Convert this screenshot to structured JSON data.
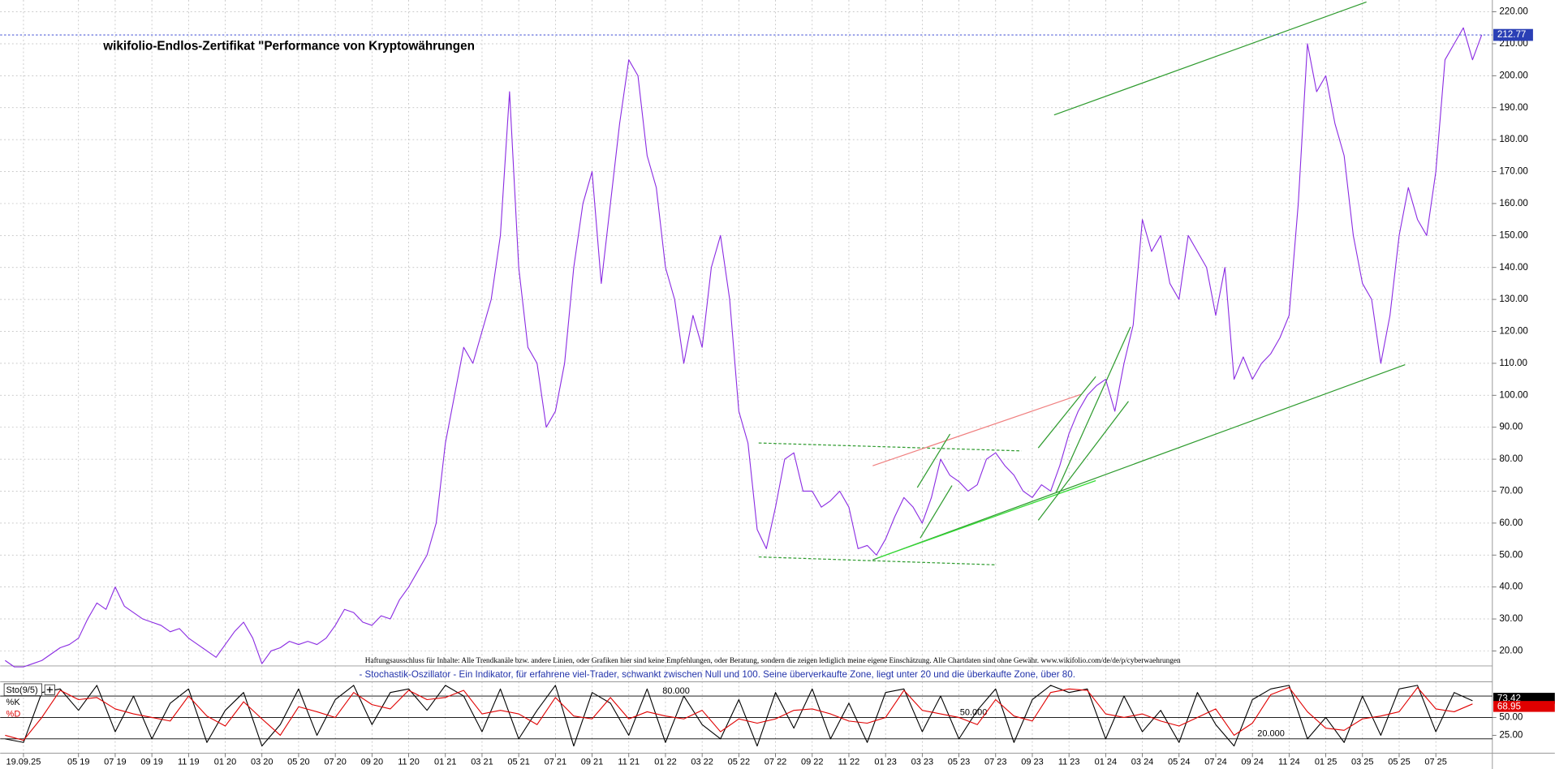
{
  "chart_data": [
    {
      "type": "line",
      "title": "wikifolio-Endlos-Zertifikat \"Performance von Kryptowährungen",
      "disclaimer": "Haftungsausschluss für Inhalte: Alle Trendkanäle bzw. andere Linien, oder Grafiken hier sind keine Empfehlungen, oder Beratung, sondern die zeigen lediglich meine eigene Einschätzung. Alle Chartdaten sind ohne Gewähr.  www.wikifolio.com/de/de/p/cyberwaehrungen",
      "categories": [
        null,
        null,
        "19.09.25",
        null,
        null,
        null,
        null,
        null,
        "05 19",
        null,
        null,
        null,
        "07 19",
        null,
        null,
        null,
        "09 19",
        null,
        null,
        null,
        "11 19",
        null,
        null,
        null,
        "01 20",
        null,
        null,
        null,
        "03 20",
        null,
        null,
        null,
        "05 20",
        null,
        null,
        null,
        "07 20",
        null,
        null,
        null,
        "09 20",
        null,
        null,
        null,
        "11 20",
        null,
        null,
        null,
        "01 21",
        null,
        null,
        null,
        "03 21",
        null,
        null,
        null,
        "05 21",
        null,
        null,
        null,
        "07 21",
        null,
        null,
        null,
        "09 21",
        null,
        null,
        null,
        "11 21",
        null,
        null,
        null,
        "01 22",
        null,
        null,
        null,
        "03 22",
        null,
        null,
        null,
        "05 22",
        null,
        null,
        null,
        "07 22",
        null,
        null,
        null,
        "09 22",
        null,
        null,
        null,
        "11 22",
        null,
        null,
        null,
        "01 23",
        null,
        null,
        null,
        "03 23",
        null,
        null,
        null,
        "05 23",
        null,
        null,
        null,
        "07 23",
        null,
        null,
        null,
        "09 23",
        null,
        null,
        null,
        "11 23",
        null,
        null,
        null,
        "01 24",
        null,
        null,
        null,
        "03 24",
        null,
        null,
        null,
        "05 24",
        null,
        null,
        null,
        "07 24",
        null,
        null,
        null,
        "09 24",
        null,
        null,
        null,
        "11 24",
        null,
        null,
        null,
        "01 25",
        null,
        null,
        null,
        "03 25",
        null,
        null,
        null,
        "05 25",
        null,
        null,
        null,
        "07 25",
        null,
        null,
        null,
        null,
        null
      ],
      "values": [
        17,
        15,
        15,
        16,
        17,
        19,
        21,
        22,
        24,
        30,
        35,
        33,
        40,
        34,
        32,
        30,
        29,
        28,
        26,
        27,
        24,
        22,
        20,
        18,
        22,
        26,
        29,
        24,
        16,
        20,
        21,
        23,
        22,
        23,
        22,
        24,
        28,
        33,
        32,
        29,
        28,
        31,
        30,
        36,
        40,
        45,
        50,
        60,
        85,
        100,
        115,
        110,
        120,
        130,
        150,
        195,
        140,
        115,
        110,
        90,
        95,
        110,
        140,
        160,
        170,
        135,
        160,
        185,
        205,
        200,
        175,
        165,
        140,
        130,
        110,
        125,
        115,
        140,
        150,
        130,
        95,
        85,
        58,
        52,
        65,
        80,
        82,
        70,
        70,
        65,
        67,
        70,
        65,
        52,
        53,
        50,
        55,
        62,
        68,
        65,
        60,
        68,
        80,
        75,
        73,
        70,
        72,
        80,
        82,
        78,
        75,
        70,
        68,
        72,
        70,
        78,
        88,
        95,
        100,
        103,
        105,
        95,
        110,
        122,
        155,
        145,
        150,
        135,
        130,
        150,
        145,
        140,
        125,
        140,
        105,
        112,
        105,
        110,
        113,
        118,
        125,
        160,
        210,
        195,
        200,
        185,
        175,
        150,
        135,
        130,
        110,
        125,
        150,
        165,
        155,
        150,
        170,
        205,
        210,
        215,
        205,
        212.77
      ],
      "color": "#8a2be2",
      "ylim": [
        15.3,
        223.7
      ],
      "yticks": [
        {
          "value": 20,
          "label": "20.00"
        },
        {
          "value": 30,
          "label": "30.00"
        },
        {
          "value": 40,
          "label": "40.00"
        },
        {
          "value": 50,
          "label": "50.00"
        },
        {
          "value": 60,
          "label": "60.00"
        },
        {
          "value": 70,
          "label": "70.00"
        },
        {
          "value": 80,
          "label": "80.00"
        },
        {
          "value": 90,
          "label": "90.00"
        },
        {
          "value": 100,
          "label": "100.00"
        },
        {
          "value": 110,
          "label": "110.00"
        },
        {
          "value": 120,
          "label": "120.00"
        },
        {
          "value": 130,
          "label": "130.00"
        },
        {
          "value": 140,
          "label": "140.00"
        },
        {
          "value": 150,
          "label": "150.00"
        },
        {
          "value": 160,
          "label": "160.00"
        },
        {
          "value": 170,
          "label": "170.00"
        },
        {
          "value": 180,
          "label": "180.00"
        },
        {
          "value": 190,
          "label": "190.00"
        },
        {
          "value": 200,
          "label": "200.00"
        },
        {
          "value": 210,
          "label": "210.00"
        },
        {
          "value": 220,
          "label": "220.00"
        }
      ],
      "grid": true
    },
    {
      "type": "line",
      "title": "Sto(9/5)",
      "subtitle": "- Stochastik-Oszillator - Ein Indikator, für erfahrene viel-Trader, schwankt zwischen Null und 100. Seine überverkaufte Zone, liegt unter 20 und die überkaufte Zone, über 80.",
      "series": [
        {
          "name": "%K",
          "color": "#000000",
          "values": [
            20,
            15,
            85,
            90,
            60,
            95,
            30,
            80,
            20,
            70,
            90,
            15,
            60,
            85,
            10,
            40,
            90,
            25,
            75,
            95,
            40,
            85,
            90,
            60,
            95,
            80,
            30,
            90,
            20,
            60,
            95,
            10,
            85,
            70,
            25,
            90,
            15,
            80,
            40,
            20,
            75,
            10,
            85,
            35,
            90,
            20,
            70,
            15,
            85,
            90,
            30,
            80,
            20,
            60,
            90,
            15,
            75,
            95,
            85,
            90,
            20,
            80,
            30,
            60,
            15,
            85,
            40,
            10,
            75,
            90,
            95,
            20,
            50,
            15,
            80,
            25,
            90,
            95,
            30,
            85,
            73.42
          ]
        },
        {
          "name": "%D",
          "color": "#e00000",
          "values": [
            25,
            18,
            50,
            88,
            75,
            78,
            62,
            55,
            50,
            45,
            80,
            52,
            38,
            72,
            48,
            25,
            65,
            58,
            50,
            85,
            68,
            62,
            88,
            75,
            78,
            88,
            55,
            60,
            55,
            40,
            78,
            52,
            48,
            78,
            48,
            58,
            52,
            48,
            60,
            30,
            48,
            42,
            48,
            60,
            62,
            55,
            45,
            42,
            50,
            88,
            60,
            55,
            50,
            40,
            75,
            52,
            45,
            85,
            90,
            88,
            55,
            50,
            55,
            45,
            38,
            50,
            62,
            25,
            42,
            82,
            92,
            58,
            35,
            32,
            48,
            52,
            58,
            92,
            62,
            58,
            68.95
          ]
        }
      ],
      "ylim": [
        0,
        100
      ],
      "yticks": [
        {
          "value": 25,
          "label": "25.00"
        },
        {
          "value": 50,
          "label": "50.00"
        }
      ],
      "levels": [
        {
          "value": 80,
          "label": "80.000"
        },
        {
          "value": 50,
          "label": "50.000"
        },
        {
          "value": 20,
          "label": "20.000"
        }
      ]
    }
  ]
}
